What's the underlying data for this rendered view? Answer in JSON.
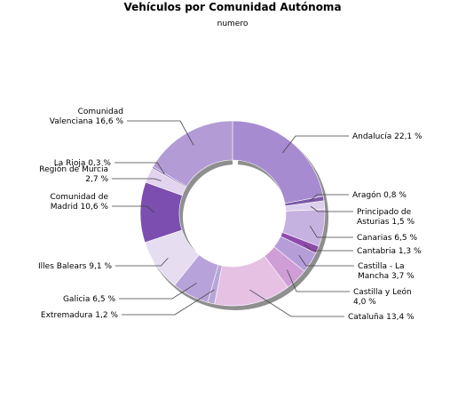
{
  "chart_data": {
    "type": "pie",
    "variant": "donut",
    "title": "Vehículos por Comunidad Autónoma",
    "subtitle": "numero",
    "unit": "%",
    "slices": [
      {
        "name": "Andalucía",
        "value": 22.1,
        "label": "Andalucía 22,1 %",
        "color": "#a78bd0"
      },
      {
        "name": "Aragón",
        "value": 0.8,
        "label": "Aragón 0,8 %",
        "color": "#7d5aa8"
      },
      {
        "name": "Principado de Asturias",
        "value": 1.5,
        "label": "Principado de|Asturias 1,5 %",
        "color": "#ddd0ec"
      },
      {
        "name": "Canarias",
        "value": 6.5,
        "label": "Canarias 6,5 %",
        "color": "#c6b2e0"
      },
      {
        "name": "Cantabria",
        "value": 1.3,
        "label": "Cantabria 1,3 %",
        "color": "#8e4aab"
      },
      {
        "name": "Castilla - La Mancha",
        "value": 3.7,
        "label": "Castilla - La|Mancha 3,7 %",
        "color": "#b59ed8"
      },
      {
        "name": "Castilla y León",
        "value": 4.0,
        "label": "Castilla y León|4,0 %",
        "color": "#cf9ed6"
      },
      {
        "name": "Cataluña",
        "value": 13.4,
        "label": "Cataluña 13,4 %",
        "color": "#e6c1e4"
      },
      {
        "name": "Extremadura",
        "value": 1.2,
        "label": "Extremadura 1,2 %",
        "color": "#b9a6d8"
      },
      {
        "name": "Galicia",
        "value": 6.5,
        "label": "Galicia 6,5 %",
        "color": "#b7a2da"
      },
      {
        "name": "Illes Balears",
        "value": 9.1,
        "label": "Illes Balears 9,1 %",
        "color": "#e6ddf1"
      },
      {
        "name": "Comunidad de Madrid",
        "value": 10.6,
        "label": "Comunidad de|Madrid 10,6 %",
        "color": "#7b4eb0"
      },
      {
        "name": "Región de Murcia",
        "value": 2.7,
        "label": "Región de Murcia|2,7 %",
        "color": "#e3d3ee"
      },
      {
        "name": "La Rioja",
        "value": 0.3,
        "label": "La Rioja 0,3 %",
        "color": "#8a6bb4"
      },
      {
        "name": "Comunidad Valenciana",
        "value": 16.6,
        "label": "Comunidad|Valenciana 16,6 %",
        "color": "#b39bd5"
      }
    ],
    "legend": "none"
  }
}
